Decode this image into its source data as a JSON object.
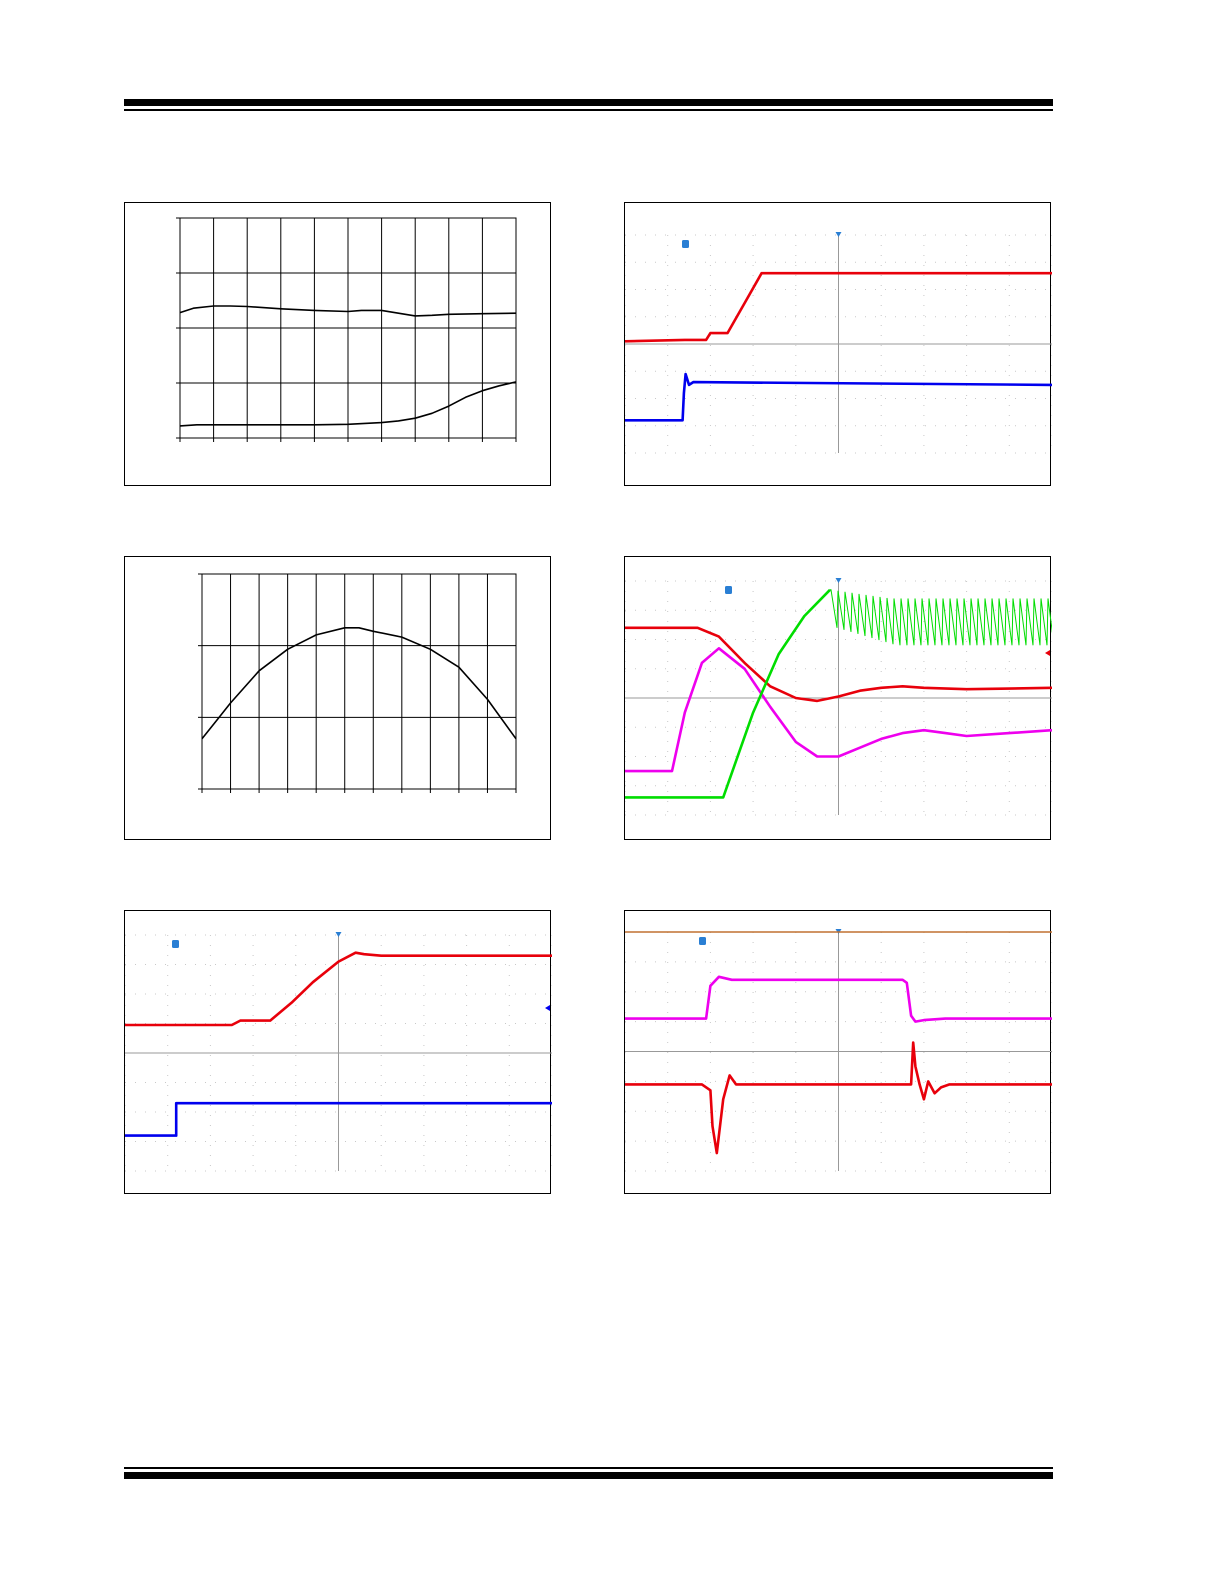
{
  "page": {},
  "chart_data": [
    {
      "type": "line",
      "panel": "top-left",
      "xlim": [
        0,
        10
      ],
      "ylim": [
        0,
        4
      ],
      "x_divisions": 10,
      "y_divisions": 4,
      "grid": true,
      "series": [
        {
          "color": "#000000",
          "x": [
            0,
            0.4,
            1,
            1.5,
            2,
            3,
            4,
            5,
            5.4,
            6,
            6.5,
            7,
            7.5,
            8,
            9,
            10
          ],
          "y": [
            2.28,
            2.36,
            2.4,
            2.4,
            2.39,
            2.35,
            2.32,
            2.3,
            2.32,
            2.32,
            2.27,
            2.22,
            2.23,
            2.25,
            2.26,
            2.27
          ]
        },
        {
          "color": "#000000",
          "x": [
            0,
            0.5,
            1,
            2,
            3,
            4,
            5,
            6,
            6.5,
            7,
            7.5,
            8,
            8.5,
            9,
            9.5,
            10
          ],
          "y": [
            0.22,
            0.24,
            0.24,
            0.24,
            0.24,
            0.24,
            0.25,
            0.28,
            0.31,
            0.36,
            0.45,
            0.58,
            0.74,
            0.86,
            0.95,
            1.02
          ]
        }
      ]
    },
    {
      "type": "line",
      "panel": "middle-left",
      "xlim": [
        0,
        11
      ],
      "ylim": [
        0,
        3
      ],
      "x_divisions": 11,
      "y_divisions": 3,
      "grid": true,
      "series": [
        {
          "color": "#000000",
          "x": [
            0,
            0.5,
            1,
            2,
            3,
            4,
            5,
            5.5,
            6,
            7,
            8,
            9,
            10,
            11
          ],
          "y": [
            0.7,
            0.95,
            1.2,
            1.65,
            1.95,
            2.15,
            2.25,
            2.25,
            2.2,
            2.12,
            1.95,
            1.7,
            1.25,
            0.7
          ]
        }
      ]
    },
    {
      "type": "line",
      "panel": "top-right",
      "xlim": [
        -5,
        5
      ],
      "ylim": [
        -4,
        4
      ],
      "x_divisions": 10,
      "y_divisions": 8,
      "grid": "dotted",
      "series": [
        {
          "color": "#e8000b",
          "x": [
            -5,
            -3.6,
            -3.1,
            -3.0,
            -2.6,
            -2.2,
            -1.8,
            -1.5,
            -1.0,
            5
          ],
          "y": [
            0.1,
            0.15,
            0.15,
            0.4,
            0.4,
            1.5,
            2.6,
            2.6,
            2.6,
            2.6
          ]
        },
        {
          "color": "#0000ee",
          "x": [
            -5,
            -3.65,
            -3.62,
            -3.58,
            -3.5,
            -3.4,
            5
          ],
          "y": [
            -2.8,
            -2.8,
            -1.8,
            -1.1,
            -1.5,
            -1.4,
            -1.5
          ]
        }
      ]
    },
    {
      "type": "line",
      "panel": "middle-right",
      "xlim": [
        -5,
        5
      ],
      "ylim": [
        -4,
        4
      ],
      "x_divisions": 10,
      "y_divisions": 8,
      "grid": "dotted",
      "series": [
        {
          "color": "#e8000b",
          "x": [
            -5,
            -3.3,
            -2.8,
            -2.2,
            -1.6,
            -1,
            -0.5,
            0,
            0.5,
            1,
            1.5,
            2,
            3,
            4,
            5
          ],
          "y": [
            2.4,
            2.4,
            2.1,
            1.2,
            0.4,
            0.0,
            -0.1,
            0.05,
            0.25,
            0.35,
            0.4,
            0.35,
            0.3,
            0.32,
            0.35
          ]
        },
        {
          "color": "#ee00ee",
          "x": [
            -5,
            -3.9,
            -3.6,
            -3.2,
            -2.8,
            -2.2,
            -1.6,
            -1,
            -0.5,
            0,
            0.5,
            1,
            1.5,
            2,
            2.5,
            3,
            4,
            5
          ],
          "y": [
            -2.5,
            -2.5,
            -0.5,
            1.2,
            1.7,
            1.0,
            -0.3,
            -1.5,
            -2.0,
            -2.0,
            -1.7,
            -1.4,
            -1.2,
            -1.1,
            -1.2,
            -1.3,
            -1.2,
            -1.1
          ]
        },
        {
          "color": "#00dd00",
          "x": [
            -5,
            -2.7,
            -2.0,
            -1.4,
            -0.8,
            -0.2
          ],
          "y": [
            -3.4,
            -3.4,
            -0.5,
            1.5,
            2.8,
            3.7
          ]
        }
      ]
    },
    {
      "type": "line",
      "panel": "bottom-left",
      "xlim": [
        -5,
        5
      ],
      "ylim": [
        -4,
        4
      ],
      "x_divisions": 10,
      "y_divisions": 8,
      "grid": "dotted",
      "series": [
        {
          "color": "#e8000b",
          "x": [
            -5,
            -2.5,
            -2.3,
            -1.6,
            -1.1,
            -0.6,
            0,
            0.4,
            0.6,
            1,
            5
          ],
          "y": [
            0.95,
            0.95,
            1.1,
            1.1,
            1.7,
            2.4,
            3.1,
            3.4,
            3.35,
            3.3,
            3.3
          ]
        },
        {
          "color": "#0000ee",
          "x": [
            -5,
            -3.8,
            -3.8,
            5
          ],
          "y": [
            -2.8,
            -2.8,
            -1.7,
            -1.7
          ]
        }
      ]
    },
    {
      "type": "line",
      "panel": "bottom-right",
      "xlim": [
        -5,
        5
      ],
      "ylim": [
        -4,
        4
      ],
      "x_divisions": 10,
      "y_divisions": 8,
      "grid": "dotted",
      "series": [
        {
          "color": "#ee00ee",
          "x": [
            -5,
            -3.1,
            -3.0,
            -2.8,
            -2.5,
            -1.5,
            0,
            1.5,
            1.6,
            1.7,
            1.8,
            2.0,
            2.5,
            5
          ],
          "y": [
            1.1,
            1.1,
            2.2,
            2.5,
            2.4,
            2.4,
            2.4,
            2.4,
            2.3,
            1.2,
            1.0,
            1.05,
            1.1,
            1.1
          ]
        },
        {
          "color": "#e8000b",
          "x": [
            -5,
            -3.2,
            -3.0,
            -2.95,
            -2.85,
            -2.7,
            -2.55,
            -2.4,
            0,
            1.7,
            1.75,
            1.8,
            1.9,
            2.0,
            2.1,
            2.25,
            2.4,
            2.6,
            5
          ],
          "y": [
            -1.1,
            -1.1,
            -1.3,
            -2.5,
            -3.4,
            -1.6,
            -0.8,
            -1.1,
            -1.1,
            -1.1,
            0.3,
            -0.5,
            -1.1,
            -1.6,
            -1.0,
            -1.4,
            -1.2,
            -1.1,
            -1.1
          ]
        }
      ]
    }
  ]
}
